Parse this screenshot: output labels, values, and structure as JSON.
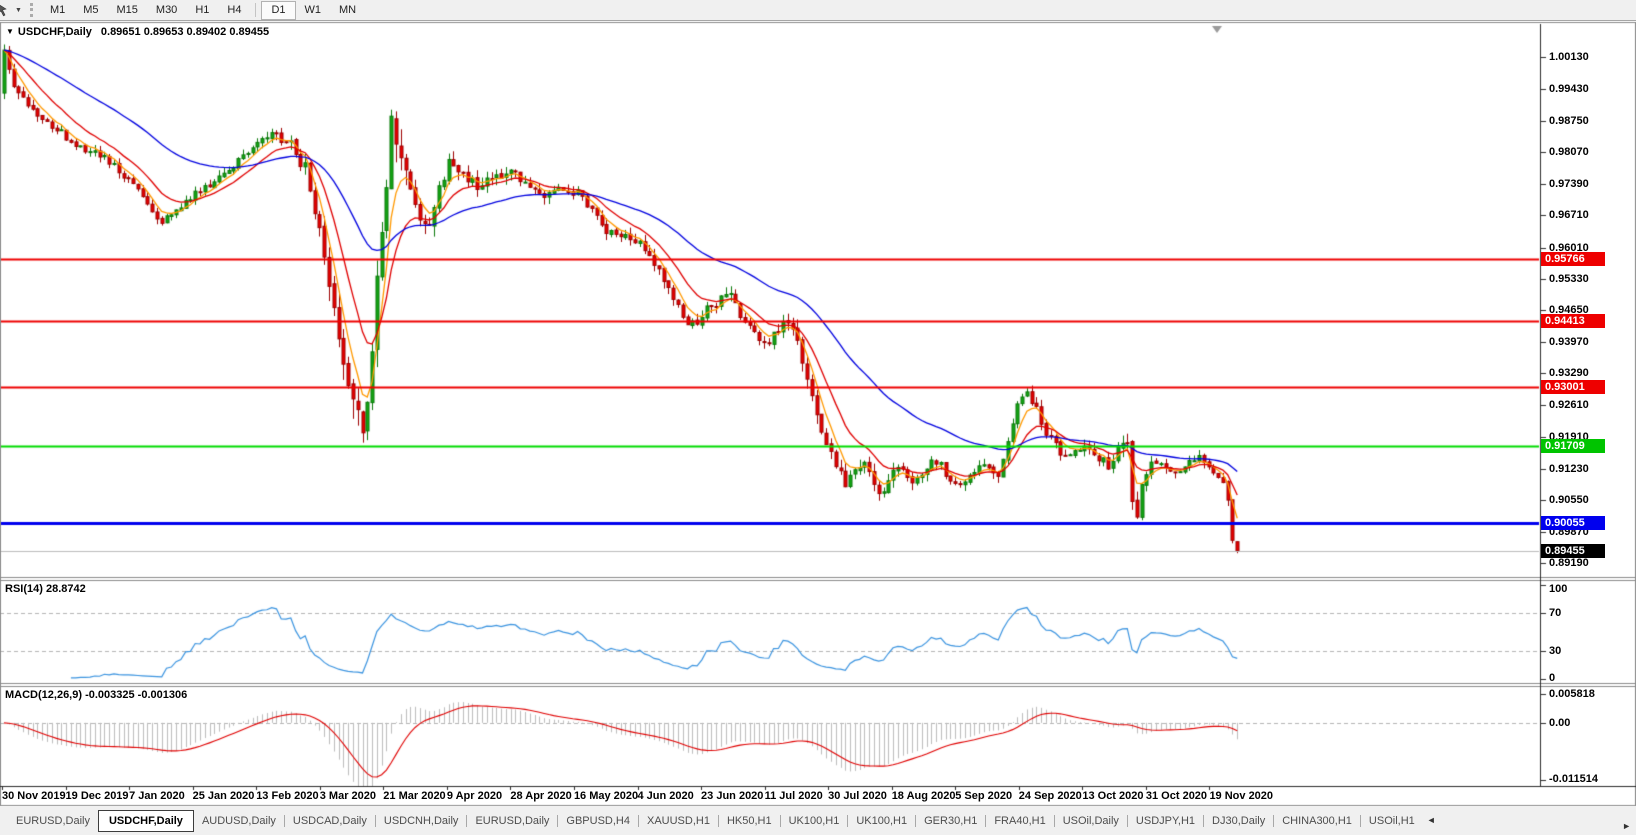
{
  "toolbar": {
    "dropdown_caret": "▼",
    "timeframes": [
      "M1",
      "M5",
      "M15",
      "M30",
      "H1",
      "H4",
      "D1",
      "W1",
      "MN"
    ],
    "active_timeframe": "D1"
  },
  "chart_header": {
    "collapse_icon": "▼",
    "title": "USDCHF,Daily",
    "ohlc": "0.89651 0.89653 0.89402 0.89455"
  },
  "indicators": {
    "rsi_label": "RSI(14) 28.8742",
    "macd_label": "MACD(12,26,9) -0.003325 -0.001306"
  },
  "axes": {
    "price_ticks": [
      "1.00130",
      "0.99430",
      "0.98750",
      "0.98070",
      "0.97390",
      "0.96710",
      "0.96010",
      "0.95330",
      "0.94650",
      "0.93970",
      "0.93290",
      "0.92610",
      "0.91910",
      "0.91230",
      "0.90550",
      "0.89870",
      "0.89190"
    ],
    "rsi_ticks": [
      {
        "label": "100",
        "value": 100
      },
      {
        "label": "70",
        "value": 70
      },
      {
        "label": "30",
        "value": 30
      },
      {
        "label": "0",
        "value": 0
      }
    ],
    "macd_ticks": [
      {
        "label": "0.005818",
        "value": 0.005818
      },
      {
        "label": "0.00",
        "value": 0
      },
      {
        "label": "-0.011514",
        "value": -0.011514
      }
    ],
    "dates": [
      "30 Nov 2019",
      "19 Dec 2019",
      "7 Jan 2020",
      "25 Jan 2020",
      "13 Feb 2020",
      "3 Mar 2020",
      "21 Mar 2020",
      "9 Apr 2020",
      "28 Apr 2020",
      "16 May 2020",
      "4 Jun 2020",
      "23 Jun 2020",
      "11 Jul 2020",
      "30 Jul 2020",
      "18 Aug 2020",
      "5 Sep 2020",
      "24 Sep 2020",
      "13 Oct 2020",
      "31 Oct 2020",
      "19 Nov 2020"
    ]
  },
  "levels": [
    {
      "price": 0.95766,
      "label": "0.95766",
      "line_color": "#ee0000",
      "badge_color": "#ee0000",
      "width": 2,
      "current": false
    },
    {
      "price": 0.94413,
      "label": "0.94413",
      "line_color": "#ee0000",
      "badge_color": "#ee0000",
      "width": 2,
      "current": false
    },
    {
      "price": 0.93001,
      "label": "0.93001",
      "line_color": "#ee0000",
      "badge_color": "#ee0000",
      "width": 2,
      "current": false
    },
    {
      "price": 0.91709,
      "label": "0.91709",
      "line_color": "#00dc00",
      "badge_color": "#00c400",
      "width": 2,
      "current": false
    },
    {
      "price": 0.90055,
      "label": "0.90055",
      "line_color": "#0000ee",
      "badge_color": "#0000ee",
      "width": 3,
      "current": false
    },
    {
      "price": 0.89455,
      "label": "0.89455",
      "line_color": "#bbbbbb",
      "badge_color": "#000000",
      "width": 1,
      "current": true
    }
  ],
  "tabs": {
    "items": [
      {
        "label": "EURUSD,Daily",
        "active": false
      },
      {
        "label": "USDCHF,Daily",
        "active": true
      },
      {
        "label": "AUDUSD,Daily",
        "active": false
      },
      {
        "label": "USDCAD,Daily",
        "active": false
      },
      {
        "label": "USDCNH,Daily",
        "active": false
      },
      {
        "label": "EURUSD,Daily",
        "active": false
      },
      {
        "label": "GBPUSD,H4",
        "active": false
      },
      {
        "label": "XAUUSD,H1",
        "active": false
      },
      {
        "label": "HK50,H1",
        "active": false
      },
      {
        "label": "UK100,H1",
        "active": false
      },
      {
        "label": "UK100,H1",
        "active": false
      },
      {
        "label": "GER30,H1",
        "active": false
      },
      {
        "label": "FRA40,H1",
        "active": false
      },
      {
        "label": "USOil,Daily",
        "active": false
      },
      {
        "label": "USDJPY,H1",
        "active": false
      },
      {
        "label": "DJ30,Daily",
        "active": false
      },
      {
        "label": "CHINA300,H1",
        "active": false
      },
      {
        "label": "USOil,H1",
        "active": false
      }
    ],
    "scroll_left_icon": "◄",
    "scroll_right_icon": "►"
  },
  "chart_data": {
    "type": "candlestick",
    "symbol": "USDCHF",
    "timeframe": "Daily",
    "bars": 259,
    "price_axis_range": [
      0.8919,
      1.0013
    ],
    "first_ohlc": {
      "open": 0.9935,
      "high": 1.004,
      "low": 0.9922,
      "close": 1.0028
    },
    "last_ohlc": {
      "open": 0.89651,
      "high": 0.89653,
      "low": 0.89402,
      "close": 0.89455
    },
    "close_path": [
      [
        0,
        1.0028
      ],
      [
        2,
        0.9948
      ],
      [
        6,
        0.9902
      ],
      [
        10,
        0.9866
      ],
      [
        13,
        0.984
      ],
      [
        17,
        0.9812
      ],
      [
        20,
        0.98
      ],
      [
        24,
        0.9768
      ],
      [
        27,
        0.974
      ],
      [
        30,
        0.9692
      ],
      [
        33,
        0.9655
      ],
      [
        36,
        0.968
      ],
      [
        40,
        0.9718
      ],
      [
        44,
        0.9746
      ],
      [
        48,
        0.9776
      ],
      [
        52,
        0.9816
      ],
      [
        56,
        0.9846
      ],
      [
        60,
        0.9822
      ],
      [
        63,
        0.977
      ],
      [
        66,
        0.9652
      ],
      [
        69,
        0.948
      ],
      [
        71,
        0.9362
      ],
      [
        73,
        0.9272
      ],
      [
        75,
        0.9206
      ],
      [
        76,
        0.9282
      ],
      [
        78,
        0.952
      ],
      [
        80,
        0.9748
      ],
      [
        81,
        0.9868
      ],
      [
        83,
        0.98
      ],
      [
        85,
        0.9722
      ],
      [
        87,
        0.9652
      ],
      [
        89,
        0.9662
      ],
      [
        91,
        0.9722
      ],
      [
        93,
        0.9786
      ],
      [
        96,
        0.9752
      ],
      [
        99,
        0.9738
      ],
      [
        103,
        0.976
      ],
      [
        107,
        0.9762
      ],
      [
        110,
        0.9736
      ],
      [
        113,
        0.9706
      ],
      [
        116,
        0.9722
      ],
      [
        120,
        0.9716
      ],
      [
        123,
        0.9682
      ],
      [
        126,
        0.9638
      ],
      [
        129,
        0.9626
      ],
      [
        133,
        0.9608
      ],
      [
        136,
        0.9562
      ],
      [
        139,
        0.9516
      ],
      [
        142,
        0.9446
      ],
      [
        145,
        0.944
      ],
      [
        147,
        0.9468
      ],
      [
        150,
        0.9488
      ],
      [
        152,
        0.95
      ],
      [
        154,
        0.9456
      ],
      [
        157,
        0.9416
      ],
      [
        160,
        0.9398
      ],
      [
        162,
        0.942
      ],
      [
        164,
        0.9446
      ],
      [
        166,
        0.939
      ],
      [
        168,
        0.9312
      ],
      [
        170,
        0.9232
      ],
      [
        172,
        0.9172
      ],
      [
        174,
        0.9136
      ],
      [
        176,
        0.9096
      ],
      [
        178,
        0.912
      ],
      [
        180,
        0.9142
      ],
      [
        182,
        0.9082
      ],
      [
        184,
        0.9066
      ],
      [
        186,
        0.911
      ],
      [
        188,
        0.9126
      ],
      [
        190,
        0.9088
      ],
      [
        192,
        0.911
      ],
      [
        194,
        0.915
      ],
      [
        196,
        0.9128
      ],
      [
        198,
        0.9096
      ],
      [
        200,
        0.9082
      ],
      [
        202,
        0.9106
      ],
      [
        204,
        0.913
      ],
      [
        206,
        0.9116
      ],
      [
        208,
        0.9102
      ],
      [
        210,
        0.918
      ],
      [
        212,
        0.926
      ],
      [
        214,
        0.9292
      ],
      [
        216,
        0.925
      ],
      [
        218,
        0.92
      ],
      [
        220,
        0.9172
      ],
      [
        222,
        0.915
      ],
      [
        224,
        0.9158
      ],
      [
        227,
        0.9168
      ],
      [
        229,
        0.9146
      ],
      [
        231,
        0.9128
      ],
      [
        233,
        0.916
      ],
      [
        235,
        0.9186
      ],
      [
        236,
        0.906
      ],
      [
        237,
        0.9022
      ],
      [
        238,
        0.9092
      ],
      [
        240,
        0.9148
      ],
      [
        242,
        0.914
      ],
      [
        244,
        0.9126
      ],
      [
        246,
        0.9118
      ],
      [
        248,
        0.914
      ],
      [
        250,
        0.9152
      ],
      [
        252,
        0.9128
      ],
      [
        254,
        0.9106
      ],
      [
        255,
        0.9086
      ],
      [
        256,
        0.9058
      ],
      [
        257,
        0.8962
      ],
      [
        258,
        0.89455
      ]
    ],
    "volatility_path": [
      [
        0,
        0.0045
      ],
      [
        20,
        0.0035
      ],
      [
        40,
        0.003
      ],
      [
        56,
        0.0035
      ],
      [
        63,
        0.006
      ],
      [
        70,
        0.01
      ],
      [
        76,
        0.0115
      ],
      [
        82,
        0.01
      ],
      [
        88,
        0.0065
      ],
      [
        95,
        0.005
      ],
      [
        110,
        0.004
      ],
      [
        130,
        0.0038
      ],
      [
        145,
        0.004
      ],
      [
        160,
        0.004
      ],
      [
        170,
        0.0058
      ],
      [
        180,
        0.0045
      ],
      [
        200,
        0.0034
      ],
      [
        212,
        0.0042
      ],
      [
        225,
        0.0034
      ],
      [
        236,
        0.0055
      ],
      [
        245,
        0.0032
      ],
      [
        255,
        0.0034
      ],
      [
        258,
        0.003
      ]
    ],
    "moving_averages": [
      {
        "type": "ema",
        "period": 5,
        "color": "#ff9900"
      },
      {
        "type": "ema",
        "period": 12,
        "color": "#e00000"
      },
      {
        "type": "ema",
        "period": 40,
        "color": "#0000e0"
      }
    ],
    "rsi": {
      "period": 14,
      "last_value": 28.8742,
      "levels": [
        70,
        30
      ],
      "color": "#3b94e0",
      "axis_range": [
        0,
        100
      ]
    },
    "macd": {
      "fast": 12,
      "slow": 26,
      "signal_period": 9,
      "last_main": -0.003325,
      "last_signal": -0.001306,
      "axis_range": [
        -0.011514,
        0.005818
      ],
      "histogram_color": "#bdbdbd",
      "signal_color": "#e00000"
    },
    "hlines": [
      0.95766,
      0.94413,
      0.93001,
      0.91709,
      0.90055
    ],
    "colors": {
      "bull": "#14a514",
      "bull_border": "#0a7a0a",
      "bear": "#e80000",
      "bear_border": "#9e0000",
      "background": "#ffffff"
    }
  }
}
